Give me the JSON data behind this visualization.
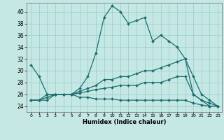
{
  "xlabel": "Humidex (Indice chaleur)",
  "xlim": [
    -0.5,
    23.5
  ],
  "ylim": [
    23.0,
    41.5
  ],
  "yticks": [
    24,
    26,
    28,
    30,
    32,
    34,
    36,
    38,
    40
  ],
  "xticks": [
    0,
    1,
    2,
    3,
    4,
    5,
    6,
    7,
    8,
    9,
    10,
    11,
    12,
    13,
    14,
    15,
    16,
    17,
    18,
    19,
    20,
    21,
    22,
    23
  ],
  "bg_color": "#c5e8e5",
  "grid_color": "#9ecece",
  "line_color": "#1a6e6e",
  "lines": [
    [
      31,
      29,
      26,
      26,
      26,
      26,
      27,
      29,
      33,
      39,
      41,
      40,
      38,
      38.5,
      39,
      35,
      36,
      35,
      34,
      32,
      29,
      26,
      25,
      24
    ],
    [
      25,
      25,
      26,
      26,
      26,
      26,
      26.5,
      27,
      27.5,
      28.5,
      28.5,
      29,
      29,
      29.5,
      30,
      30,
      30.5,
      31,
      31.5,
      32,
      26,
      25,
      24,
      24
    ],
    [
      25,
      25,
      25.5,
      26,
      26,
      26,
      26.2,
      26.5,
      26.8,
      27,
      27.2,
      27.5,
      27.5,
      27.5,
      28,
      28,
      28,
      28.5,
      29,
      29,
      26,
      25,
      24.5,
      24
    ],
    [
      25,
      25,
      25,
      26,
      26,
      26,
      25.5,
      25.5,
      25.2,
      25.2,
      25.2,
      25,
      25,
      25,
      25,
      25,
      25,
      25,
      25,
      25,
      24.5,
      24.2,
      24,
      24
    ]
  ]
}
